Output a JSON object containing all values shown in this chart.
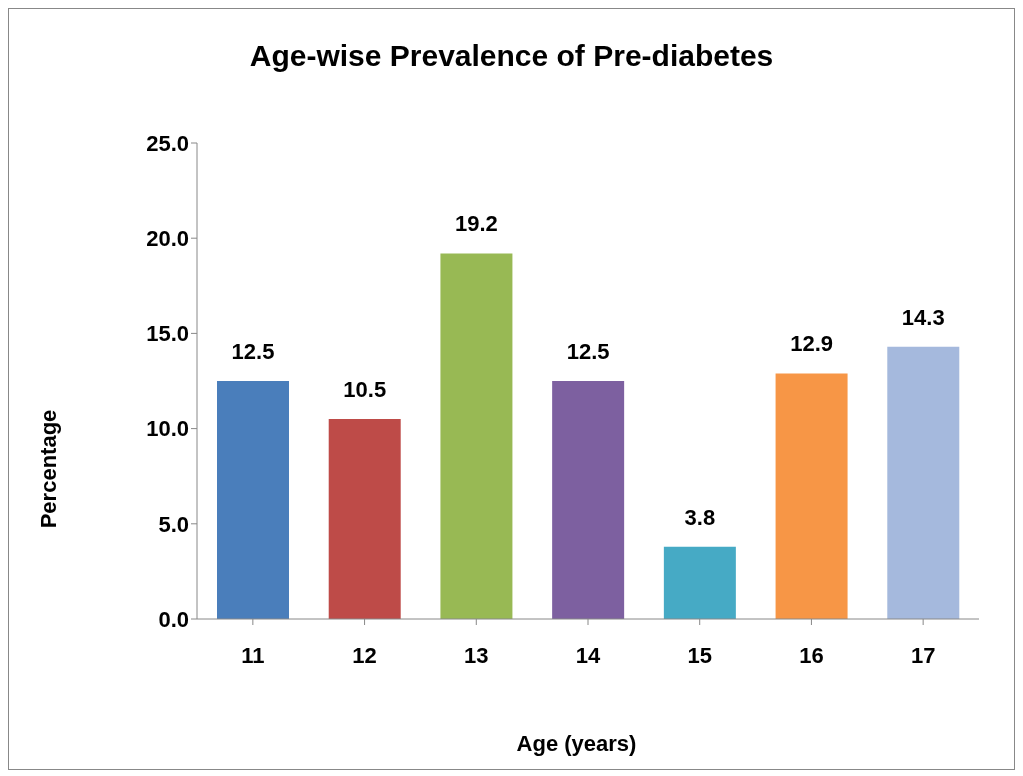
{
  "chart_data": {
    "type": "bar",
    "title": "Age-wise Prevalence of Pre-diabetes",
    "xlabel": "Age (years)",
    "ylabel": "Percentage",
    "categories": [
      "11",
      "12",
      "13",
      "14",
      "15",
      "16",
      "17"
    ],
    "values": [
      12.5,
      10.5,
      19.2,
      12.5,
      3.8,
      12.9,
      14.3
    ],
    "colors": [
      "#4a7ebb",
      "#be4b48",
      "#98b954",
      "#7d60a0",
      "#46aac5",
      "#f79646",
      "#a5b9dd"
    ],
    "ylim": [
      0,
      25
    ],
    "yticks": [
      {
        "value": 0,
        "label": "0.0"
      },
      {
        "value": 5,
        "label": "5.0"
      },
      {
        "value": 10,
        "label": "10.0"
      },
      {
        "value": 15,
        "label": "15.0"
      },
      {
        "value": 20,
        "label": "20.0"
      },
      {
        "value": 25,
        "label": "25.0"
      }
    ],
    "grid": false,
    "data_labels": true,
    "legend": false
  }
}
